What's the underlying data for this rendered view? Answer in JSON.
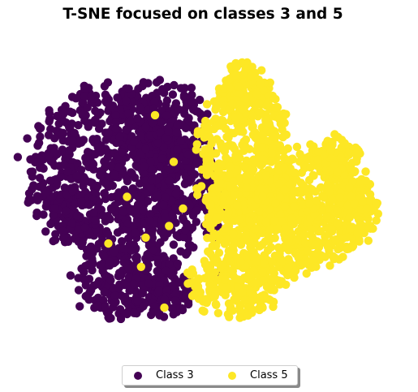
{
  "chart_data": {
    "type": "scatter",
    "title": "T-SNE focused on classes 3 and 5",
    "xlabel": "",
    "ylabel": "",
    "axes_visible": false,
    "grid": false,
    "legend_position": "bottom-center",
    "series": [
      {
        "name": "Class 3",
        "color": "#440154",
        "clusters": [
          {
            "cx": -44,
            "cy": 20,
            "rx": 36,
            "ry": 28,
            "n": 620
          },
          {
            "cx": -24,
            "cy": 36,
            "rx": 22,
            "ry": 14,
            "n": 220
          },
          {
            "cx": -14,
            "cy": 12,
            "rx": 20,
            "ry": 22,
            "n": 260
          },
          {
            "cx": -60,
            "cy": 6,
            "rx": 14,
            "ry": 14,
            "n": 120
          },
          {
            "cx": -38,
            "cy": -18,
            "rx": 22,
            "ry": 14,
            "n": 220
          },
          {
            "cx": -20,
            "cy": -22,
            "rx": 14,
            "ry": 10,
            "n": 110
          }
        ],
        "sparse_points": [
          [
            8,
            46
          ],
          [
            10,
            42
          ],
          [
            -1,
            2
          ],
          [
            3,
            0
          ],
          [
            5,
            -2
          ],
          [
            6,
            4
          ],
          [
            2,
            -16
          ]
        ]
      },
      {
        "name": "Class 5",
        "color": "#fde725",
        "clusters": [
          {
            "cx": 14,
            "cy": 22,
            "rx": 20,
            "ry": 30,
            "n": 520
          },
          {
            "cx": 22,
            "cy": 0,
            "rx": 26,
            "ry": 20,
            "n": 380
          },
          {
            "cx": 42,
            "cy": 6,
            "rx": 22,
            "ry": 22,
            "n": 340
          },
          {
            "cx": 60,
            "cy": 6,
            "rx": 12,
            "ry": 14,
            "n": 160
          },
          {
            "cx": 54,
            "cy": 24,
            "rx": 10,
            "ry": 7,
            "n": 70
          },
          {
            "cx": 10,
            "cy": -20,
            "rx": 20,
            "ry": 12,
            "n": 200
          },
          {
            "cx": 14,
            "cy": 46,
            "rx": 10,
            "ry": 10,
            "n": 90
          }
        ],
        "sparse_points": [
          [
            -24,
            38
          ],
          [
            -16,
            22
          ],
          [
            -12,
            6
          ],
          [
            -30,
            -14
          ],
          [
            -20,
            -28
          ],
          [
            -36,
            10
          ],
          [
            -28,
            -4
          ],
          [
            -8,
            -24
          ],
          [
            -44,
            -6
          ],
          [
            -6,
            28
          ],
          [
            -18,
            0
          ]
        ]
      }
    ],
    "xlim": [
      -80,
      80
    ],
    "ylim": [
      -38,
      58
    ]
  }
}
